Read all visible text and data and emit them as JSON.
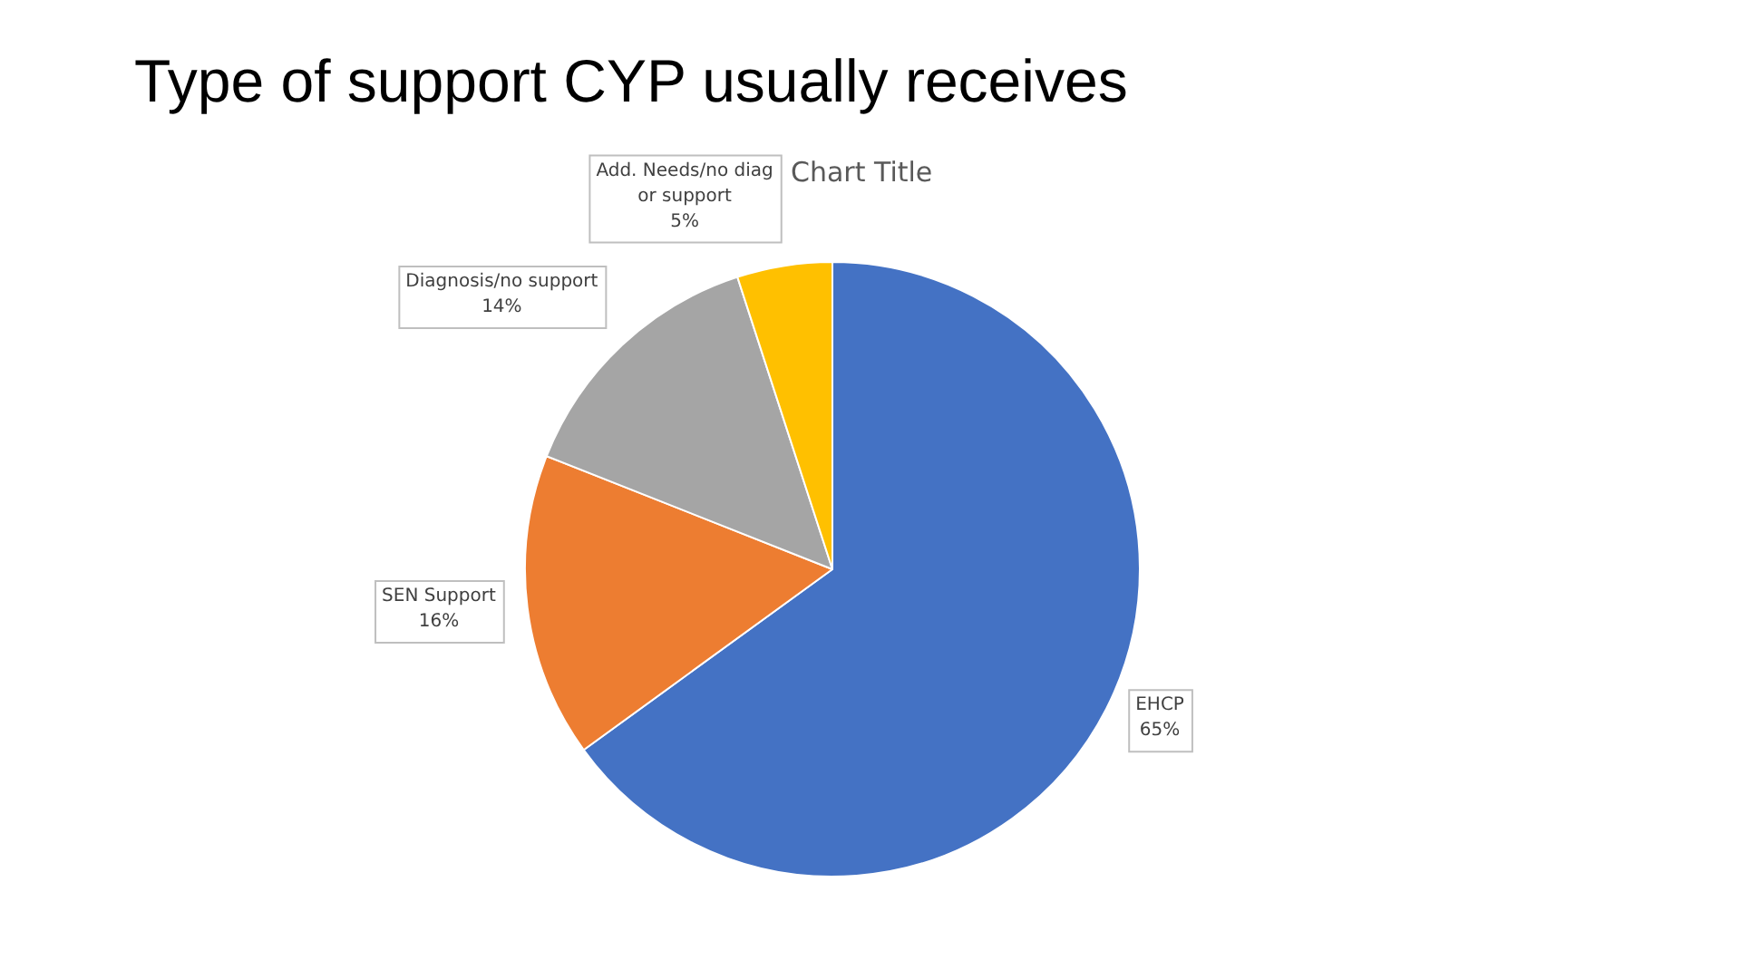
{
  "chart_data": {
    "type": "pie",
    "title": "Type of support CYP usually receives",
    "subtitle": "Chart Title",
    "categories": [
      "EHCP",
      "SEN Support",
      "Diagnosis/no support",
      "Add. Needs/no diag or support"
    ],
    "values": [
      65,
      16,
      14,
      5
    ],
    "colors": [
      "#4472c4",
      "#ed7d31",
      "#a5a5a5",
      "#ffc000"
    ],
    "value_labels": [
      "65%",
      "16%",
      "14%",
      "5%"
    ],
    "legend": false
  }
}
